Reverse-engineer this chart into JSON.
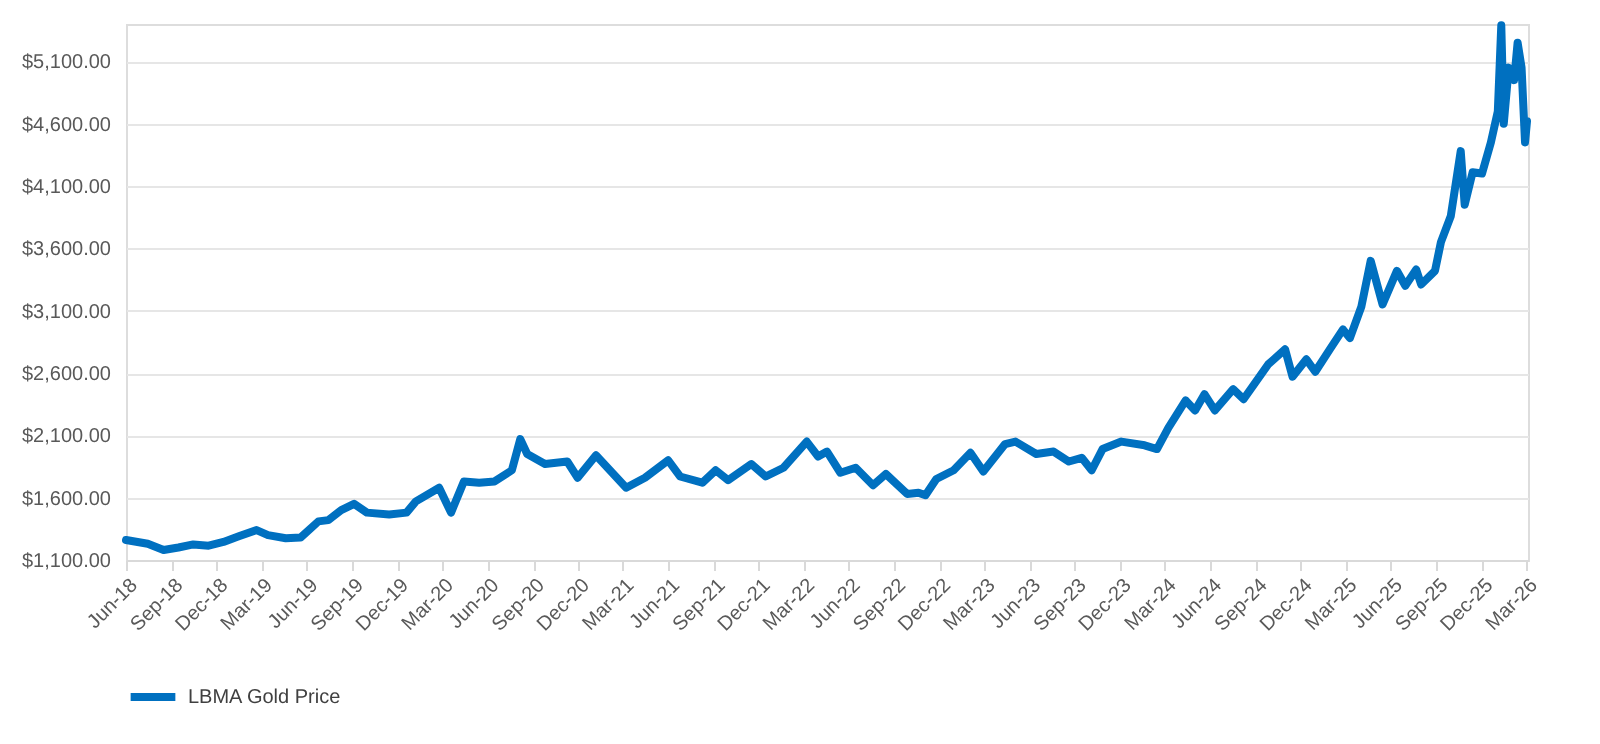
{
  "chart_data": {
    "type": "line",
    "x": [
      "2018-06-01",
      "2018-07-15",
      "2018-08-16",
      "2018-09-15",
      "2018-10-15",
      "2018-11-15",
      "2018-12-15",
      "2019-01-15",
      "2019-02-20",
      "2019-03-15",
      "2019-04-20",
      "2019-05-20",
      "2019-06-25",
      "2019-07-15",
      "2019-08-10",
      "2019-09-05",
      "2019-10-01",
      "2019-11-15",
      "2019-12-20",
      "2020-01-08",
      "2020-02-24",
      "2020-03-19",
      "2020-04-14",
      "2020-05-15",
      "2020-06-15",
      "2020-07-20",
      "2020-08-06",
      "2020-08-20",
      "2020-09-25",
      "2020-11-09",
      "2020-11-30",
      "2021-01-06",
      "2021-03-08",
      "2021-04-15",
      "2021-06-01",
      "2021-06-25",
      "2021-08-09",
      "2021-09-05",
      "2021-09-30",
      "2021-11-16",
      "2021-12-15",
      "2022-01-20",
      "2022-03-08",
      "2022-03-31",
      "2022-04-18",
      "2022-05-15",
      "2022-06-15",
      "2022-07-20",
      "2022-08-15",
      "2022-09-27",
      "2022-10-20",
      "2022-11-03",
      "2022-11-25",
      "2022-12-30",
      "2023-02-02",
      "2023-02-28",
      "2023-04-13",
      "2023-05-04",
      "2023-06-15",
      "2023-07-20",
      "2023-08-20",
      "2023-09-15",
      "2023-10-05",
      "2023-10-27",
      "2023-12-04",
      "2024-01-20",
      "2024-02-14",
      "2024-03-08",
      "2024-04-12",
      "2024-05-01",
      "2024-05-20",
      "2024-06-10",
      "2024-07-17",
      "2024-08-07",
      "2024-09-26",
      "2024-10-30",
      "2024-11-14",
      "2024-12-12",
      "2024-12-30",
      "2025-01-30",
      "2025-02-24",
      "2025-03-10",
      "2025-04-02",
      "2025-04-21",
      "2025-05-15",
      "2025-06-13",
      "2025-06-30",
      "2025-07-22",
      "2025-08-01",
      "2025-08-29",
      "2025-09-10",
      "2025-09-30",
      "2025-10-20",
      "2025-10-28",
      "2025-11-13",
      "2025-12-02",
      "2025-12-20",
      "2026-01-03",
      "2026-01-10",
      "2026-01-15",
      "2026-01-25",
      "2026-02-05",
      "2026-02-12",
      "2026-02-20",
      "2026-02-27",
      "2026-03-03"
    ],
    "series": [
      {
        "name": "LBMA Gold Price",
        "color": "#0070c0",
        "values": [
          1260,
          1230,
          1180,
          1200,
          1225,
          1215,
          1245,
          1290,
          1340,
          1300,
          1275,
          1280,
          1410,
          1420,
          1500,
          1550,
          1480,
          1465,
          1480,
          1570,
          1680,
          1480,
          1730,
          1720,
          1730,
          1820,
          2070,
          1950,
          1870,
          1890,
          1760,
          1940,
          1680,
          1760,
          1900,
          1770,
          1720,
          1820,
          1740,
          1870,
          1770,
          1840,
          2050,
          1930,
          1970,
          1800,
          1840,
          1700,
          1790,
          1630,
          1640,
          1620,
          1750,
          1820,
          1960,
          1810,
          2030,
          2050,
          1950,
          1970,
          1890,
          1920,
          1820,
          1990,
          2050,
          2020,
          1990,
          2160,
          2380,
          2300,
          2430,
          2300,
          2470,
          2390,
          2670,
          2790,
          2570,
          2710,
          2610,
          2800,
          2950,
          2880,
          3130,
          3500,
          3150,
          3420,
          3300,
          3430,
          3310,
          3420,
          3650,
          3860,
          4380,
          3950,
          4210,
          4200,
          4450,
          4700,
          5390,
          4600,
          5050,
          4950,
          5250,
          5050,
          4450,
          4620
        ]
      }
    ],
    "xlim": [
      "2018-06-01",
      "2026-03-05"
    ],
    "xticks": [
      {
        "value": "2018-06-01",
        "label": "Jun-18"
      },
      {
        "value": "2018-09-01",
        "label": "Sep-18"
      },
      {
        "value": "2018-12-01",
        "label": "Dec-18"
      },
      {
        "value": "2019-03-01",
        "label": "Mar-19"
      },
      {
        "value": "2019-06-01",
        "label": "Jun-19"
      },
      {
        "value": "2019-09-01",
        "label": "Sep-19"
      },
      {
        "value": "2019-12-01",
        "label": "Dec-19"
      },
      {
        "value": "2020-03-01",
        "label": "Mar-20"
      },
      {
        "value": "2020-06-01",
        "label": "Jun-20"
      },
      {
        "value": "2020-09-01",
        "label": "Sep-20"
      },
      {
        "value": "2020-12-01",
        "label": "Dec-20"
      },
      {
        "value": "2021-03-01",
        "label": "Mar-21"
      },
      {
        "value": "2021-06-01",
        "label": "Jun-21"
      },
      {
        "value": "2021-09-01",
        "label": "Sep-21"
      },
      {
        "value": "2021-12-01",
        "label": "Dec-21"
      },
      {
        "value": "2022-03-01",
        "label": "Mar-22"
      },
      {
        "value": "2022-06-01",
        "label": "Jun-22"
      },
      {
        "value": "2022-09-01",
        "label": "Sep-22"
      },
      {
        "value": "2022-12-01",
        "label": "Dec-22"
      },
      {
        "value": "2023-03-01",
        "label": "Mar-23"
      },
      {
        "value": "2023-06-01",
        "label": "Jun-23"
      },
      {
        "value": "2023-09-01",
        "label": "Sep-23"
      },
      {
        "value": "2023-12-01",
        "label": "Dec-23"
      },
      {
        "value": "2024-03-01",
        "label": "Mar-24"
      },
      {
        "value": "2024-06-01",
        "label": "Jun-24"
      },
      {
        "value": "2024-09-01",
        "label": "Sep-24"
      },
      {
        "value": "2024-12-01",
        "label": "Dec-24"
      },
      {
        "value": "2025-03-01",
        "label": "Mar-25"
      },
      {
        "value": "2025-06-01",
        "label": "Jun-25"
      },
      {
        "value": "2025-09-01",
        "label": "Sep-25"
      },
      {
        "value": "2025-12-01",
        "label": "Dec-25"
      },
      {
        "value": "2026-03-01",
        "label": "Mar-26"
      }
    ],
    "ylim": [
      1100,
      5400
    ],
    "yticks": [
      {
        "value": 1100,
        "label": "$1,100.00"
      },
      {
        "value": 1600,
        "label": "$1,600.00"
      },
      {
        "value": 2100,
        "label": "$2,100.00"
      },
      {
        "value": 2600,
        "label": "$2,600.00"
      },
      {
        "value": 3100,
        "label": "$3,100.00"
      },
      {
        "value": 3600,
        "label": "$3,600.00"
      },
      {
        "value": 4100,
        "label": "$4,100.00"
      },
      {
        "value": 4600,
        "label": "$4,600.00"
      },
      {
        "value": 5100,
        "label": "$5,100.00"
      }
    ],
    "grid": "y",
    "legend": "bottom",
    "line_style": "solid",
    "marker": "none"
  }
}
